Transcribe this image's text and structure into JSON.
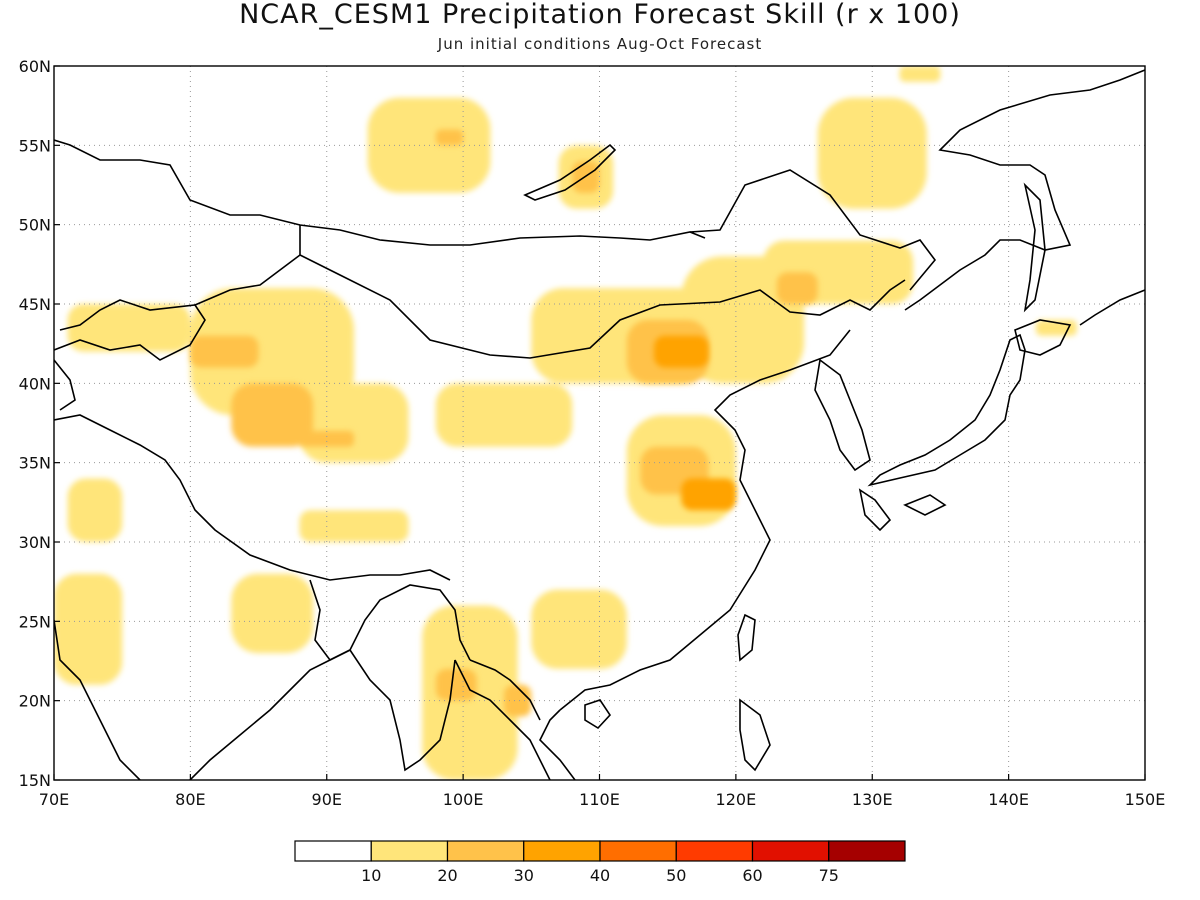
{
  "title": "NCAR_CESM1 Precipitation Forecast Skill (r x 100)",
  "subtitle": "Jun initial conditions  Aug-Oct Forecast",
  "chart_data": {
    "type": "heatmap",
    "x_ticks": [
      "70E",
      "80E",
      "90E",
      "100E",
      "110E",
      "120E",
      "130E",
      "140E",
      "150E"
    ],
    "y_ticks": [
      "60N",
      "55N",
      "50N",
      "45N",
      "40N",
      "35N",
      "30N",
      "25N",
      "20N",
      "15N"
    ],
    "lon_range": [
      70,
      150
    ],
    "lat_range": [
      15,
      60
    ],
    "grid": true,
    "colorbar": {
      "labels": [
        "10",
        "20",
        "30",
        "40",
        "50",
        "60",
        "75"
      ],
      "colors": [
        "#ffffff",
        "#ffe57a",
        "#ffc24a",
        "#ffa300",
        "#ff6e00",
        "#ff3b00",
        "#e11000",
        "#a50000"
      ]
    },
    "skill_regions": [
      {
        "lon_min": 71,
        "lon_max": 80,
        "lat_min": 42,
        "lat_max": 45,
        "level": 1
      },
      {
        "lon_min": 80,
        "lon_max": 92,
        "lat_min": 38,
        "lat_max": 46,
        "level": 1
      },
      {
        "lon_min": 80,
        "lon_max": 85,
        "lat_min": 41,
        "lat_max": 43,
        "level": 2
      },
      {
        "lon_min": 83,
        "lon_max": 89,
        "lat_min": 36,
        "lat_max": 40,
        "level": 2
      },
      {
        "lon_min": 88,
        "lon_max": 96,
        "lat_min": 35,
        "lat_max": 40,
        "level": 1
      },
      {
        "lon_min": 88,
        "lon_max": 92,
        "lat_min": 36,
        "lat_max": 37,
        "level": 2
      },
      {
        "lon_min": 88,
        "lon_max": 96,
        "lat_min": 30,
        "lat_max": 32,
        "level": 1
      },
      {
        "lon_min": 71,
        "lon_max": 75,
        "lat_min": 30,
        "lat_max": 34,
        "level": 1
      },
      {
        "lon_min": 70,
        "lon_max": 75,
        "lat_min": 21,
        "lat_max": 28,
        "level": 1
      },
      {
        "lon_min": 83,
        "lon_max": 89,
        "lat_min": 23,
        "lat_max": 28,
        "level": 1
      },
      {
        "lon_min": 93,
        "lon_max": 102,
        "lat_min": 52,
        "lat_max": 58,
        "level": 1
      },
      {
        "lon_min": 98,
        "lon_max": 100,
        "lat_min": 55,
        "lat_max": 56,
        "level": 2
      },
      {
        "lon_min": 107,
        "lon_max": 111,
        "lat_min": 51,
        "lat_max": 55,
        "level": 1
      },
      {
        "lon_min": 108,
        "lon_max": 110,
        "lat_min": 52,
        "lat_max": 54,
        "level": 2
      },
      {
        "lon_min": 105,
        "lon_max": 118,
        "lat_min": 40,
        "lat_max": 46,
        "level": 1
      },
      {
        "lon_min": 112,
        "lon_max": 118,
        "lat_min": 40,
        "lat_max": 44,
        "level": 2
      },
      {
        "lon_min": 114,
        "lon_max": 118,
        "lat_min": 41,
        "lat_max": 43,
        "level": 3
      },
      {
        "lon_min": 116,
        "lon_max": 125,
        "lat_min": 40,
        "lat_max": 48,
        "level": 1
      },
      {
        "lon_min": 122,
        "lon_max": 133,
        "lat_min": 45,
        "lat_max": 49,
        "level": 1
      },
      {
        "lon_min": 123,
        "lon_max": 126,
        "lat_min": 45,
        "lat_max": 47,
        "level": 2
      },
      {
        "lon_min": 126,
        "lon_max": 134,
        "lat_min": 51,
        "lat_max": 58,
        "level": 1
      },
      {
        "lon_min": 112,
        "lon_max": 120,
        "lat_min": 31,
        "lat_max": 38,
        "level": 1
      },
      {
        "lon_min": 113,
        "lon_max": 118,
        "lat_min": 33,
        "lat_max": 36,
        "level": 2
      },
      {
        "lon_min": 116,
        "lon_max": 120,
        "lat_min": 32,
        "lat_max": 34,
        "level": 3
      },
      {
        "lon_min": 98,
        "lon_max": 108,
        "lat_min": 36,
        "lat_max": 40,
        "level": 1
      },
      {
        "lon_min": 105,
        "lon_max": 112,
        "lat_min": 22,
        "lat_max": 27,
        "level": 1
      },
      {
        "lon_min": 97,
        "lon_max": 104,
        "lat_min": 15,
        "lat_max": 26,
        "level": 1
      },
      {
        "lon_min": 98,
        "lon_max": 101,
        "lat_min": 20,
        "lat_max": 22,
        "level": 2
      },
      {
        "lon_min": 103,
        "lon_max": 105,
        "lat_min": 19,
        "lat_max": 21,
        "level": 2
      },
      {
        "lon_min": 142,
        "lon_max": 145,
        "lat_min": 43,
        "lat_max": 44,
        "level": 1
      },
      {
        "lon_min": 132,
        "lon_max": 135,
        "lat_min": 59,
        "lat_max": 60,
        "level": 1
      }
    ]
  }
}
